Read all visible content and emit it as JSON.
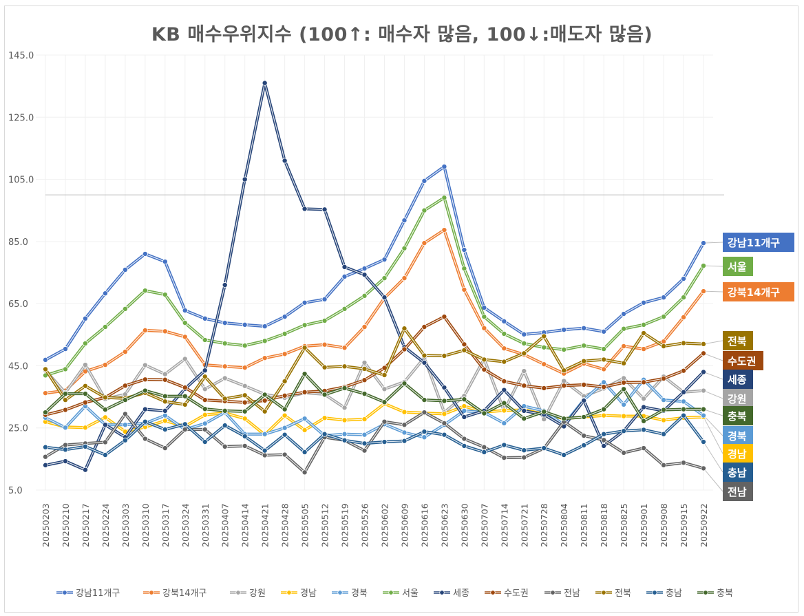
{
  "chart_data": {
    "type": "line",
    "title": "KB 매수우위지수 (100↑: 매수자 많음, 100↓:매도자 많음)",
    "xlabel": "",
    "ylabel": "",
    "ylim": [
      5,
      145
    ],
    "yticks": [
      "5.0",
      "25.0",
      "45.0",
      "65.0",
      "85.0",
      "105.0",
      "125.0",
      "145.0"
    ],
    "reference_line": 100,
    "grid": true,
    "legend_position": "bottom",
    "categories": [
      "20250203",
      "20250210",
      "20250217",
      "20250224",
      "20250303",
      "20250310",
      "20250317",
      "20250324",
      "20250331",
      "20250407",
      "20250414",
      "20250421",
      "20250428",
      "20250505",
      "20250512",
      "20250519",
      "20250526",
      "20250602",
      "20250609",
      "20250616",
      "20250623",
      "20250630",
      "20250707",
      "20250714",
      "20250721",
      "20250728",
      "20250804",
      "20250811",
      "20250818",
      "20250825",
      "20250901",
      "20250908",
      "20250915",
      "20250922"
    ],
    "series": [
      {
        "name": "강남11개구",
        "color": "#4472C4",
        "values": [
          46.9,
          50.4,
          60.2,
          68.3,
          75.9,
          81.0,
          78.5,
          62.8,
          60.2,
          58.8,
          58.2,
          57.7,
          60.8,
          65.3,
          66.4,
          73.7,
          76.3,
          79.2,
          91.8,
          104.5,
          109.1,
          82.3,
          63.7,
          59.3,
          55.1,
          55.7,
          56.6,
          57.1,
          56.0,
          61.7,
          65.3,
          67.0,
          73.0,
          84.5
        ]
      },
      {
        "name": "강북14개구",
        "color": "#ED7D31",
        "values": [
          36.2,
          37.0,
          43.2,
          45.3,
          49.5,
          56.4,
          56.1,
          54.3,
          45.3,
          44.8,
          44.4,
          47.5,
          48.8,
          51.3,
          51.8,
          50.8,
          57.5,
          66.8,
          73.2,
          84.5,
          88.7,
          69.5,
          57.1,
          50.6,
          48.6,
          45.5,
          42.5,
          45.7,
          43.9,
          51.3,
          50.4,
          52.8,
          60.6,
          69.0
        ]
      },
      {
        "name": "강원",
        "color": "#A5A5A5",
        "values": [
          43.5,
          36.3,
          45.3,
          34.3,
          35.8,
          45.2,
          42.3,
          47.2,
          37.5,
          41.0,
          38.5,
          35.8,
          34.7,
          36.3,
          35.8,
          31.5,
          46.0,
          37.5,
          39.8,
          47.6,
          30.0,
          35.3,
          47.2,
          30.5,
          43.3,
          27.8,
          40.1,
          35.2,
          37.7,
          41.0,
          34.4,
          41.5,
          36.5,
          37.0
        ]
      },
      {
        "name": "경남",
        "color": "#FFC000",
        "values": [
          27.0,
          25.3,
          25.1,
          28.4,
          23.8,
          25.3,
          27.3,
          25.5,
          29.2,
          29.8,
          28.0,
          22.8,
          29.0,
          24.3,
          28.2,
          27.5,
          27.8,
          32.8,
          30.1,
          29.8,
          29.5,
          32.0,
          30.1,
          30.6,
          30.8,
          29.5,
          28.0,
          28.5,
          29.0,
          28.8,
          28.8,
          27.5,
          28.3,
          28.5
        ]
      },
      {
        "name": "경북",
        "color": "#5B9BD5",
        "values": [
          28.3,
          25.1,
          32.0,
          26.0,
          26.0,
          26.5,
          29.0,
          24.5,
          26.4,
          30.0,
          23.0,
          23.0,
          25.0,
          28.0,
          22.5,
          23.0,
          22.8,
          26.2,
          23.5,
          22.0,
          26.0,
          30.5,
          30.0,
          26.5,
          32.0,
          30.5,
          26.0,
          34.0,
          39.7,
          32.5,
          40.5,
          34.0,
          33.5,
          29.0
        ]
      },
      {
        "name": "서울",
        "color": "#70AD47",
        "values": [
          41.9,
          43.9,
          52.2,
          57.5,
          63.3,
          69.2,
          67.9,
          58.8,
          53.3,
          52.2,
          51.5,
          53.0,
          55.3,
          58.1,
          59.5,
          63.3,
          67.5,
          73.2,
          82.8,
          95.0,
          99.1,
          76.3,
          60.8,
          55.3,
          52.2,
          50.9,
          50.2,
          51.5,
          50.4,
          56.9,
          58.2,
          60.8,
          67.0,
          77.2
        ]
      },
      {
        "name": "세종",
        "color": "#264478",
        "values": [
          13.0,
          14.3,
          11.5,
          26.0,
          22.0,
          31.0,
          30.5,
          37.6,
          43.5,
          71.0,
          105.0,
          136.0,
          111.0,
          95.5,
          95.3,
          76.8,
          74.3,
          67.0,
          51.0,
          46.0,
          38.0,
          28.5,
          30.5,
          37.2,
          30.5,
          29.3,
          25.5,
          33.8,
          19.2,
          24.0,
          31.7,
          30.5,
          36.5,
          43.0
        ]
      },
      {
        "name": "수도권",
        "color": "#9E480E",
        "values": [
          29.2,
          30.8,
          33.2,
          34.8,
          38.6,
          40.6,
          40.5,
          38.0,
          34.0,
          33.6,
          33.2,
          33.8,
          35.4,
          36.5,
          36.9,
          38.2,
          40.4,
          44.3,
          50.3,
          57.5,
          60.8,
          51.9,
          43.8,
          40.0,
          38.6,
          37.8,
          38.6,
          38.9,
          38.2,
          39.6,
          39.7,
          40.9,
          43.4,
          49.0
        ]
      },
      {
        "name": "전남",
        "color": "#636363",
        "values": [
          15.7,
          19.5,
          20.0,
          20.4,
          29.5,
          21.5,
          18.5,
          24.5,
          24.5,
          19.0,
          19.2,
          16.2,
          16.4,
          10.7,
          22.0,
          21.0,
          17.7,
          27.0,
          26.0,
          30.0,
          26.5,
          21.5,
          18.8,
          15.4,
          15.5,
          18.4,
          27.0,
          22.5,
          21.1,
          17.0,
          18.5,
          13.0,
          13.8,
          12.0
        ]
      },
      {
        "name": "전북",
        "color": "#997300",
        "values": [
          43.9,
          34.0,
          38.5,
          34.8,
          34.5,
          36.3,
          33.5,
          32.5,
          41.5,
          34.4,
          35.5,
          30.3,
          40.0,
          50.8,
          44.5,
          44.8,
          44.0,
          42.0,
          57.0,
          48.3,
          48.2,
          50.0,
          47.0,
          46.3,
          49.0,
          54.5,
          43.5,
          46.5,
          47.0,
          45.8,
          55.5,
          51.3,
          52.3,
          52.0
        ]
      },
      {
        "name": "충남",
        "color": "#255E91",
        "values": [
          18.8,
          18.0,
          19.0,
          16.3,
          21.0,
          27.0,
          24.5,
          26.2,
          20.5,
          25.8,
          22.3,
          17.7,
          22.8,
          17.2,
          23.0,
          21.0,
          20.0,
          20.5,
          20.8,
          23.8,
          22.8,
          19.2,
          17.2,
          19.5,
          17.8,
          18.5,
          16.3,
          19.4,
          23.0,
          24.0,
          24.4,
          23.0,
          29.0,
          20.5
        ]
      },
      {
        "name": "충북",
        "color": "#43682B",
        "values": [
          30.0,
          36.0,
          36.0,
          30.9,
          34.0,
          37.0,
          35.2,
          35.2,
          31.1,
          30.5,
          30.3,
          35.7,
          31.0,
          42.4,
          35.7,
          37.8,
          36.0,
          33.3,
          39.3,
          34.0,
          33.7,
          34.2,
          29.7,
          33.0,
          28.0,
          30.2,
          28.0,
          28.5,
          31.0,
          37.5,
          27.2,
          30.8,
          31.0,
          31.0
        ]
      }
    ],
    "end_labels": [
      "강남11개구",
      "서울",
      "강북14개구",
      "전북",
      "수도권",
      "세종",
      "강원",
      "충북",
      "경북",
      "경남",
      "충남",
      "전남"
    ]
  }
}
